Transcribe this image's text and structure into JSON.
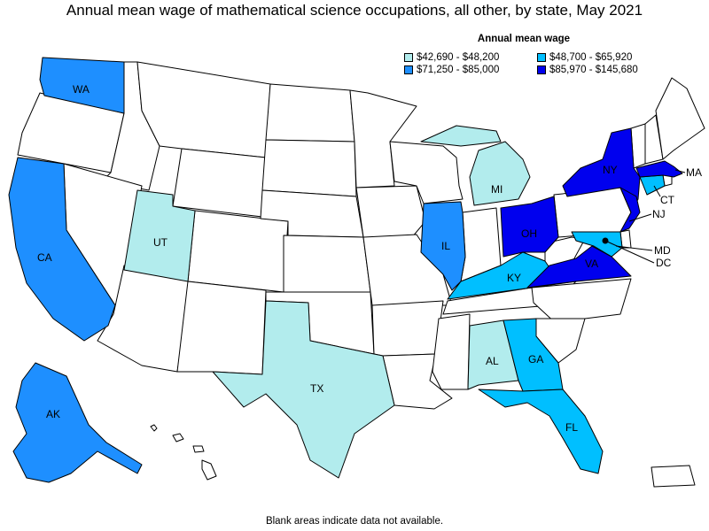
{
  "title": "Annual mean wage of mathematical science occupations, all other, by state, May 2021",
  "legend": {
    "title": "Annual mean wage",
    "items": [
      {
        "label": "$42,690 - $48,200",
        "color": "#b2eced"
      },
      {
        "label": "$48,700 - $65,920",
        "color": "#00bfff"
      },
      {
        "label": "$71,250 - $85,000",
        "color": "#1e8fff"
      },
      {
        "label": "$85,970 - $145,680",
        "color": "#0000ee"
      }
    ]
  },
  "footnote": "Blank areas indicate data not available.",
  "states": [
    {
      "abbr": "WA",
      "tier": 3
    },
    {
      "abbr": "CA",
      "tier": 3
    },
    {
      "abbr": "AK",
      "tier": 3
    },
    {
      "abbr": "UT",
      "tier": 1
    },
    {
      "abbr": "TX",
      "tier": 1
    },
    {
      "abbr": "MI",
      "tier": 1
    },
    {
      "abbr": "AL",
      "tier": 1
    },
    {
      "abbr": "IL",
      "tier": 3
    },
    {
      "abbr": "KY",
      "tier": 2
    },
    {
      "abbr": "GA",
      "tier": 2
    },
    {
      "abbr": "FL",
      "tier": 2
    },
    {
      "abbr": "CT",
      "tier": 2
    },
    {
      "abbr": "MD",
      "tier": 2
    },
    {
      "abbr": "OH",
      "tier": 4
    },
    {
      "abbr": "VA",
      "tier": 4
    },
    {
      "abbr": "NY",
      "tier": 4
    },
    {
      "abbr": "NJ",
      "tier": 4
    },
    {
      "abbr": "MA",
      "tier": 4
    },
    {
      "abbr": "DC",
      "tier": 4
    }
  ]
}
